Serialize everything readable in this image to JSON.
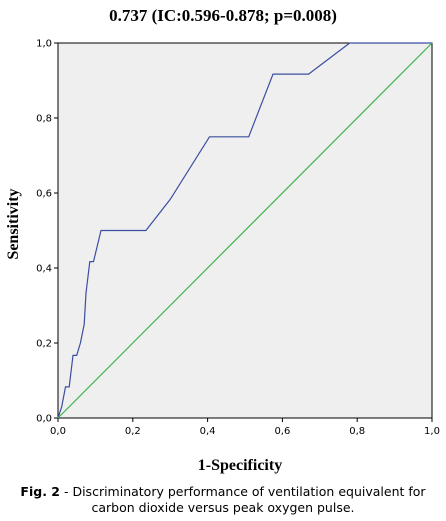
{
  "chart_data": {
    "type": "line",
    "title": "0.737 (IC:0.596-0.878; p=0.008)",
    "xlabel": "1-Specificity",
    "ylabel": "Sensitivity",
    "xlim": [
      0,
      1
    ],
    "ylim": [
      0,
      1
    ],
    "x_ticks": [
      "0,0",
      "0,2",
      "0,4",
      "0,6",
      "0,8",
      "1,0"
    ],
    "y_ticks": [
      "0,0",
      "0,2",
      "0,4",
      "0,6",
      "0,8",
      "1,0"
    ],
    "grid": false,
    "series": [
      {
        "color": "#3b4fa0",
        "points": [
          [
            0.0,
            0.0
          ],
          [
            0.01,
            0.03
          ],
          [
            0.02,
            0.083
          ],
          [
            0.03,
            0.083
          ],
          [
            0.04,
            0.167
          ],
          [
            0.05,
            0.167
          ],
          [
            0.06,
            0.2
          ],
          [
            0.07,
            0.25
          ],
          [
            0.075,
            0.333
          ],
          [
            0.085,
            0.417
          ],
          [
            0.095,
            0.417
          ],
          [
            0.115,
            0.5
          ],
          [
            0.235,
            0.5
          ],
          [
            0.3,
            0.583
          ],
          [
            0.405,
            0.75
          ],
          [
            0.51,
            0.75
          ],
          [
            0.575,
            0.917
          ],
          [
            0.67,
            0.917
          ],
          [
            0.78,
            1.0
          ],
          [
            1.0,
            1.0
          ]
        ]
      },
      {
        "color": "#3cb54a",
        "points": [
          [
            0,
            0
          ],
          [
            1,
            1
          ]
        ]
      }
    ]
  },
  "caption": {
    "label": "Fig. 2",
    "text": " - Discriminatory performance of ventilation equivalent for carbon dioxide versus peak oxygen pulse."
  }
}
